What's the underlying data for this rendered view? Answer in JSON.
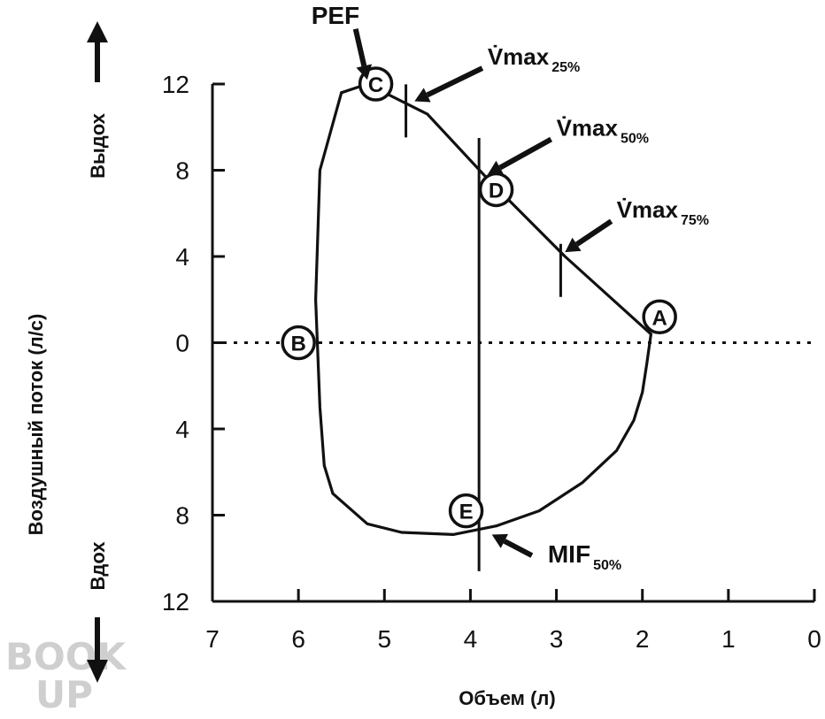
{
  "chart_data": {
    "type": "line",
    "title": "",
    "xlabel": "Объем (л)",
    "ylabel": "Воздушный поток (л/с)",
    "ylabel_top": "Выдох",
    "ylabel_bottom": "Вдох",
    "x_axis_reversed": true,
    "xlim": [
      7,
      0
    ],
    "ylim": [
      -12,
      12
    ],
    "x_ticks": [
      7,
      6,
      5,
      4,
      3,
      2,
      1,
      0
    ],
    "x_tick_labels": [
      "7",
      "6",
      "5",
      "4",
      "3",
      "2",
      "1",
      "0"
    ],
    "y_ticks": [
      12,
      8,
      4,
      0,
      -4,
      -8,
      -12
    ],
    "y_tick_labels": [
      "12",
      "8",
      "4",
      "0",
      "4",
      "8",
      "12"
    ],
    "grid": false,
    "series": [
      {
        "name": "",
        "role": "expiration",
        "x": [
          1.9,
          2.9,
          3.8,
          4.5,
          5.2,
          5.5
        ],
        "y": [
          0.4,
          4.0,
          7.6,
          10.6,
          12.0,
          11.6
        ]
      },
      {
        "name": "",
        "role": "loop-return",
        "x": [
          5.5,
          5.75,
          5.8,
          5.75,
          5.7,
          5.6,
          5.2,
          4.8,
          4.2,
          3.7,
          3.2,
          2.7,
          2.3,
          2.1,
          2.0,
          1.95,
          1.9
        ],
        "y": [
          11.6,
          8.0,
          2.0,
          -3.0,
          -5.7,
          -7.0,
          -8.4,
          -8.8,
          -8.9,
          -8.5,
          -7.8,
          -6.5,
          -5.0,
          -3.6,
          -2.3,
          -1.0,
          0.4
        ]
      }
    ],
    "reference_lines": [
      {
        "orientation": "horizontal",
        "y": 0,
        "style": "dotted"
      },
      {
        "orientation": "vertical",
        "x": 3.9,
        "style": "solid"
      }
    ],
    "tick_marks_on_curve": [
      {
        "x": 4.75,
        "y": 11.0
      },
      {
        "x": 2.95,
        "y": 3.6
      }
    ],
    "points": [
      {
        "label": "A",
        "x": 1.8,
        "y": 1.2
      },
      {
        "label": "B",
        "x": 6.0,
        "y": 0.0
      },
      {
        "label": "C",
        "x": 5.1,
        "y": 12.0
      },
      {
        "label": "D",
        "x": 3.7,
        "y": 7.1
      },
      {
        "label": "E",
        "x": 4.05,
        "y": -7.8
      }
    ],
    "annotations": [
      {
        "text": "PEF",
        "sub": "",
        "x": 5.85,
        "y": 14.8,
        "arrow_to": [
          5.2,
          12.2
        ]
      },
      {
        "text": "V̇max",
        "sub": "25%",
        "x": 3.8,
        "y": 12.9,
        "arrow_to": [
          4.65,
          11.2
        ]
      },
      {
        "text": "V̇max",
        "sub": "50%",
        "x": 3.0,
        "y": 9.6,
        "arrow_to": [
          3.8,
          7.8
        ]
      },
      {
        "text": "V̇max",
        "sub": "75%",
        "x": 2.3,
        "y": 5.8,
        "arrow_to": [
          2.9,
          4.2
        ]
      },
      {
        "text": "MIF",
        "sub": "50%",
        "x": 3.1,
        "y": -10.2,
        "arrow_to": [
          3.75,
          -8.9
        ]
      }
    ]
  },
  "watermark": {
    "line1": "BOOK",
    "line2": "UP"
  }
}
